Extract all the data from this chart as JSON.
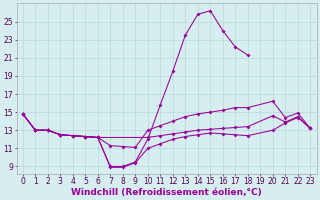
{
  "background_color": "#d6eef0",
  "grid_color": "#b8d8db",
  "line_color": "#990099",
  "markersize": 2.0,
  "xlabel": "Windchill (Refroidissement éolien,°C)",
  "xlabel_fontsize": 6.5,
  "tick_fontsize": 5.5,
  "xlim": [
    -0.5,
    23.5
  ],
  "ylim": [
    8.2,
    27.0
  ],
  "yticks": [
    9,
    11,
    13,
    15,
    17,
    19,
    21,
    23,
    25
  ],
  "xticks": [
    0,
    1,
    2,
    3,
    4,
    5,
    6,
    7,
    8,
    9,
    10,
    11,
    12,
    13,
    14,
    15,
    16,
    17,
    18,
    19,
    20,
    21,
    22,
    23
  ],
  "line1_x": [
    0,
    1,
    2,
    3,
    4,
    5,
    6,
    7,
    8,
    9,
    10,
    11,
    12,
    13,
    14,
    15,
    16,
    17,
    18
  ],
  "line1_y": [
    14.8,
    13.0,
    13.0,
    12.5,
    12.4,
    12.3,
    12.2,
    9.0,
    9.0,
    9.5,
    12.0,
    15.8,
    19.5,
    23.5,
    25.8,
    26.2,
    24.0,
    22.2,
    21.3
  ],
  "line2_x": [
    0,
    1,
    2,
    3,
    4,
    5,
    6,
    7,
    8,
    9,
    10,
    11,
    12,
    13,
    14,
    15,
    16,
    17,
    18,
    20,
    21,
    22,
    23
  ],
  "line2_y": [
    14.8,
    13.0,
    13.0,
    12.5,
    12.4,
    12.3,
    12.2,
    11.3,
    11.2,
    11.1,
    13.0,
    13.5,
    14.0,
    14.5,
    14.8,
    15.0,
    15.2,
    15.5,
    15.5,
    16.2,
    14.4,
    14.9,
    13.2
  ],
  "line3_x": [
    0,
    1,
    2,
    3,
    4,
    5,
    6,
    10,
    11,
    12,
    13,
    14,
    15,
    16,
    17,
    18,
    20,
    21,
    22,
    23
  ],
  "line3_y": [
    14.8,
    13.0,
    13.0,
    12.5,
    12.4,
    12.3,
    12.2,
    12.2,
    12.4,
    12.6,
    12.8,
    13.0,
    13.1,
    13.2,
    13.3,
    13.4,
    14.6,
    13.9,
    14.5,
    13.2
  ],
  "line4_x": [
    0,
    1,
    2,
    3,
    4,
    5,
    6,
    7,
    8,
    9,
    10,
    11,
    12,
    13,
    14,
    15,
    16,
    17,
    18,
    20,
    21,
    22,
    23
  ],
  "line4_y": [
    14.8,
    13.0,
    13.0,
    12.5,
    12.4,
    12.3,
    12.2,
    8.9,
    8.9,
    9.4,
    11.0,
    11.5,
    12.0,
    12.3,
    12.5,
    12.7,
    12.6,
    12.5,
    12.4,
    13.0,
    13.8,
    14.4,
    13.2
  ]
}
